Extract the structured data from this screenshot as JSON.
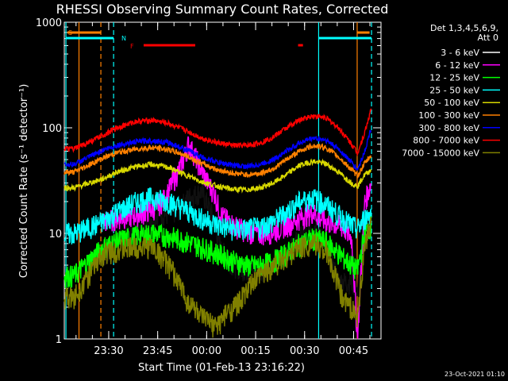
{
  "chart_data": {
    "type": "line",
    "title": "RHESSI Observing Summary Count Rates, Corrected",
    "xlabel": "Start Time (01-Feb-13 23:16:22)",
    "ylabel": "Corrected Count Rate (s⁻¹ detector⁻¹)",
    "yscale": "log",
    "ylim": [
      1,
      1000
    ],
    "xlim_minutes": [
      0,
      97
    ],
    "x_ticks": [
      {
        "minutes": 13.6,
        "label": "23:30"
      },
      {
        "minutes": 28.6,
        "label": "23:45"
      },
      {
        "minutes": 43.6,
        "label": "00:00"
      },
      {
        "minutes": 58.6,
        "label": "00:15"
      },
      {
        "minutes": 73.6,
        "label": "00:30"
      },
      {
        "minutes": 88.6,
        "label": "00:45"
      }
    ],
    "y_ticks": [
      {
        "value": 1,
        "label": "1"
      },
      {
        "value": 10,
        "label": "10"
      },
      {
        "value": 100,
        "label": "100"
      },
      {
        "value": 1000,
        "label": "1000"
      }
    ],
    "legend_header": [
      "Det 1,3,4,5,6,9,",
      "Att 0"
    ],
    "series": [
      {
        "name": "3 - 6 keV",
        "color": "#000000",
        "x": [
          12,
          16,
          22,
          27,
          29,
          32,
          35,
          38,
          42,
          45,
          48,
          52,
          56,
          60,
          64,
          68,
          72,
          74,
          77,
          80,
          84,
          88,
          89.8,
          92,
          94
        ],
        "values": [
          6,
          8.5,
          11,
          14,
          16,
          15,
          17,
          22,
          25,
          16,
          7,
          5,
          4.5,
          4.5,
          5,
          6.5,
          9,
          11,
          12,
          8,
          3.5,
          3.5,
          3,
          10,
          12
        ]
      },
      {
        "name": "6 - 12 keV",
        "color": "#ff00ff",
        "x": [
          12,
          16,
          22,
          27,
          29,
          31,
          33,
          36,
          38,
          40,
          42,
          44,
          46,
          48,
          52,
          56,
          60,
          64,
          68,
          72,
          74,
          76,
          80,
          84,
          86,
          88,
          89.8,
          92,
          94
        ],
        "values": [
          13,
          14,
          15,
          17,
          19,
          22,
          30,
          45,
          70,
          55,
          40,
          30,
          24,
          15,
          12,
          10.5,
          10,
          10.5,
          12,
          14,
          15,
          16,
          13,
          12,
          11,
          9,
          1,
          20,
          30
        ]
      },
      {
        "name": "12 - 25 keV",
        "color": "#00ff00",
        "x": [
          0,
          3,
          12,
          16,
          22,
          27,
          32,
          37,
          42,
          47,
          52,
          56,
          60,
          64,
          68,
          72,
          76,
          80,
          84,
          88,
          89.8,
          92,
          94
        ],
        "values": [
          4,
          4,
          7.5,
          8.5,
          9.5,
          10,
          9.5,
          8.5,
          7.5,
          6.5,
          5.5,
          5,
          5,
          5.5,
          6.5,
          8,
          9,
          8.5,
          6.5,
          5,
          4.5,
          10,
          12
        ]
      },
      {
        "name": "25 - 50 keV",
        "color": "#00ffff",
        "x": [
          0,
          3,
          12,
          16,
          22,
          27,
          32,
          37,
          42,
          47,
          52,
          56,
          60,
          64,
          68,
          72,
          76,
          80,
          84,
          88,
          89.8,
          92,
          94
        ],
        "values": [
          10,
          10,
          13,
          16,
          20,
          22,
          20,
          17,
          14,
          12,
          11,
          11,
          11.5,
          13,
          16,
          20,
          22,
          19,
          15,
          12,
          11,
          14,
          16
        ]
      },
      {
        "name": "50 - 100 keV",
        "color": "#d8d800",
        "x": [
          0,
          3,
          12,
          16,
          22,
          27,
          32,
          37,
          42,
          47,
          52,
          56,
          60,
          64,
          68,
          72,
          76,
          80,
          84,
          88,
          89.8,
          92,
          94
        ],
        "values": [
          27,
          27,
          33,
          38,
          43,
          45,
          42,
          36,
          31,
          28,
          26,
          26,
          27,
          30,
          36,
          44,
          48,
          46,
          38,
          30,
          28,
          36,
          40
        ]
      },
      {
        "name": "100 - 300 keV",
        "color": "#ff8000",
        "x": [
          0,
          3,
          12,
          16,
          22,
          27,
          32,
          37,
          42,
          47,
          52,
          56,
          60,
          64,
          68,
          72,
          76,
          80,
          84,
          88,
          89.8,
          92,
          94
        ],
        "values": [
          38,
          38,
          52,
          58,
          63,
          65,
          62,
          55,
          46,
          40,
          37,
          36,
          37,
          41,
          50,
          60,
          68,
          65,
          53,
          40,
          35,
          46,
          55
        ]
      },
      {
        "name": "300 - 800 keV",
        "color": "#0000ff",
        "x": [
          0,
          3,
          12,
          16,
          22,
          27,
          32,
          37,
          42,
          47,
          52,
          56,
          60,
          64,
          68,
          72,
          76,
          80,
          84,
          88,
          89.8,
          92,
          94
        ],
        "values": [
          45,
          45,
          62,
          68,
          74,
          76,
          72,
          63,
          53,
          47,
          44,
          43,
          45,
          50,
          60,
          72,
          80,
          77,
          63,
          47,
          40,
          60,
          100
        ]
      },
      {
        "name": "800 - 7000 keV",
        "color": "#ff0000",
        "x": [
          0,
          3,
          12,
          16,
          22,
          27,
          32,
          37,
          42,
          47,
          52,
          56,
          60,
          64,
          68,
          72,
          76,
          80,
          84,
          88,
          89.8,
          92,
          94
        ],
        "values": [
          63,
          63,
          85,
          100,
          115,
          118,
          110,
          95,
          80,
          72,
          68,
          68,
          72,
          82,
          100,
          118,
          130,
          125,
          100,
          70,
          58,
          90,
          150
        ]
      },
      {
        "name": "7000 - 15000 keV",
        "color": "#808000",
        "x": [
          0,
          3,
          12,
          16,
          22,
          27,
          30,
          33,
          36,
          38,
          40,
          42,
          44,
          46,
          48,
          50,
          52,
          55,
          57,
          60,
          64,
          68,
          72,
          76,
          80,
          83,
          85,
          88,
          89.8,
          92,
          94
        ],
        "values": [
          2.5,
          2.5,
          6.5,
          7,
          7.5,
          7.5,
          6,
          4.5,
          3,
          2.2,
          2,
          1.6,
          1.5,
          1.3,
          1.5,
          1.8,
          2,
          2.6,
          3.2,
          4,
          5,
          6,
          7.5,
          8,
          7,
          4,
          2.5,
          2,
          1.5,
          8,
          12
        ]
      }
    ],
    "annotations": [
      {
        "text": "S",
        "color": "#ff8000"
      },
      {
        "text": "N",
        "color": "#00ffff"
      },
      {
        "text": "F",
        "color": "#ff0000"
      }
    ],
    "vertical_lines": [
      {
        "minutes": 0.5,
        "color": "#00ffff",
        "style": "solid"
      },
      {
        "minutes": 4.5,
        "color": "#ff8000",
        "style": "solid"
      },
      {
        "minutes": 11.2,
        "color": "#ff8000",
        "style": "dashed"
      },
      {
        "minutes": 15.1,
        "color": "#00ffff",
        "style": "dashed"
      },
      {
        "minutes": 77.9,
        "color": "#00ffff",
        "style": "solid"
      },
      {
        "minutes": 89.7,
        "color": "#ff8000",
        "style": "solid"
      },
      {
        "minutes": 94.1,
        "color": "#00ffff",
        "style": "dashed"
      }
    ],
    "saa_bars": [
      [
        0.5,
        15.1
      ],
      [
        77.9,
        94.1
      ]
    ],
    "night_bars": [
      [
        1.0,
        11.2
      ],
      [
        89.7,
        93.5
      ]
    ],
    "flare_bars": [
      [
        24.3,
        40.1
      ],
      [
        71.6,
        73.1
      ]
    ]
  },
  "footer": {
    "date": "23-Oct-2021 01:10"
  }
}
